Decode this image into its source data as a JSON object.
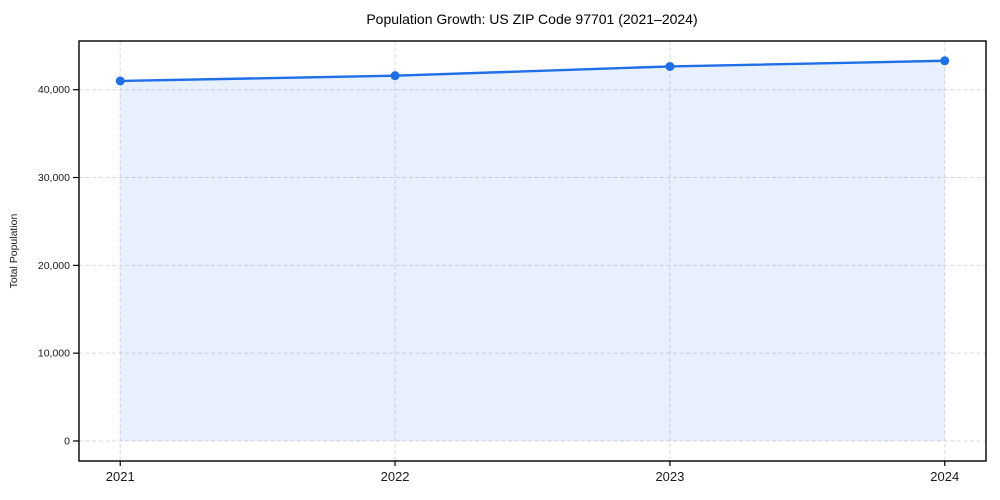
{
  "page": {
    "background": "#ffffff"
  },
  "chart_data": {
    "type": "line",
    "title": "Population Growth: US ZIP Code 97701 (2021–2024)",
    "xlabel": "",
    "ylabel": "Total Population",
    "categories": [
      "2021",
      "2022",
      "2023",
      "2024"
    ],
    "x": [
      2021,
      2022,
      2023,
      2024
    ],
    "series": [
      {
        "name": "Total Population",
        "values": [
          41000,
          41600,
          42650,
          43300
        ],
        "marker": "circle",
        "area_fill": true
      }
    ],
    "xlim": [
      2020.85,
      2024.15
    ],
    "ylim": [
      -2280,
      45550
    ],
    "yticks": [
      0,
      10000,
      20000,
      30000,
      40000
    ],
    "ytick_labels": [
      "0",
      "10,000",
      "20,000",
      "30,000",
      "40,000"
    ],
    "grid": "both-dashed",
    "legend": "none",
    "colors": {
      "line": "#1f6fe8",
      "marker": "#1f6fe8",
      "area_fill": "#1f6fe8",
      "area_opacity": 0.1,
      "grid": "#d9d9d9",
      "spine": "#000000",
      "tick_label": "#1a1a1a",
      "title": "#000000",
      "background": "#ffffff"
    }
  }
}
